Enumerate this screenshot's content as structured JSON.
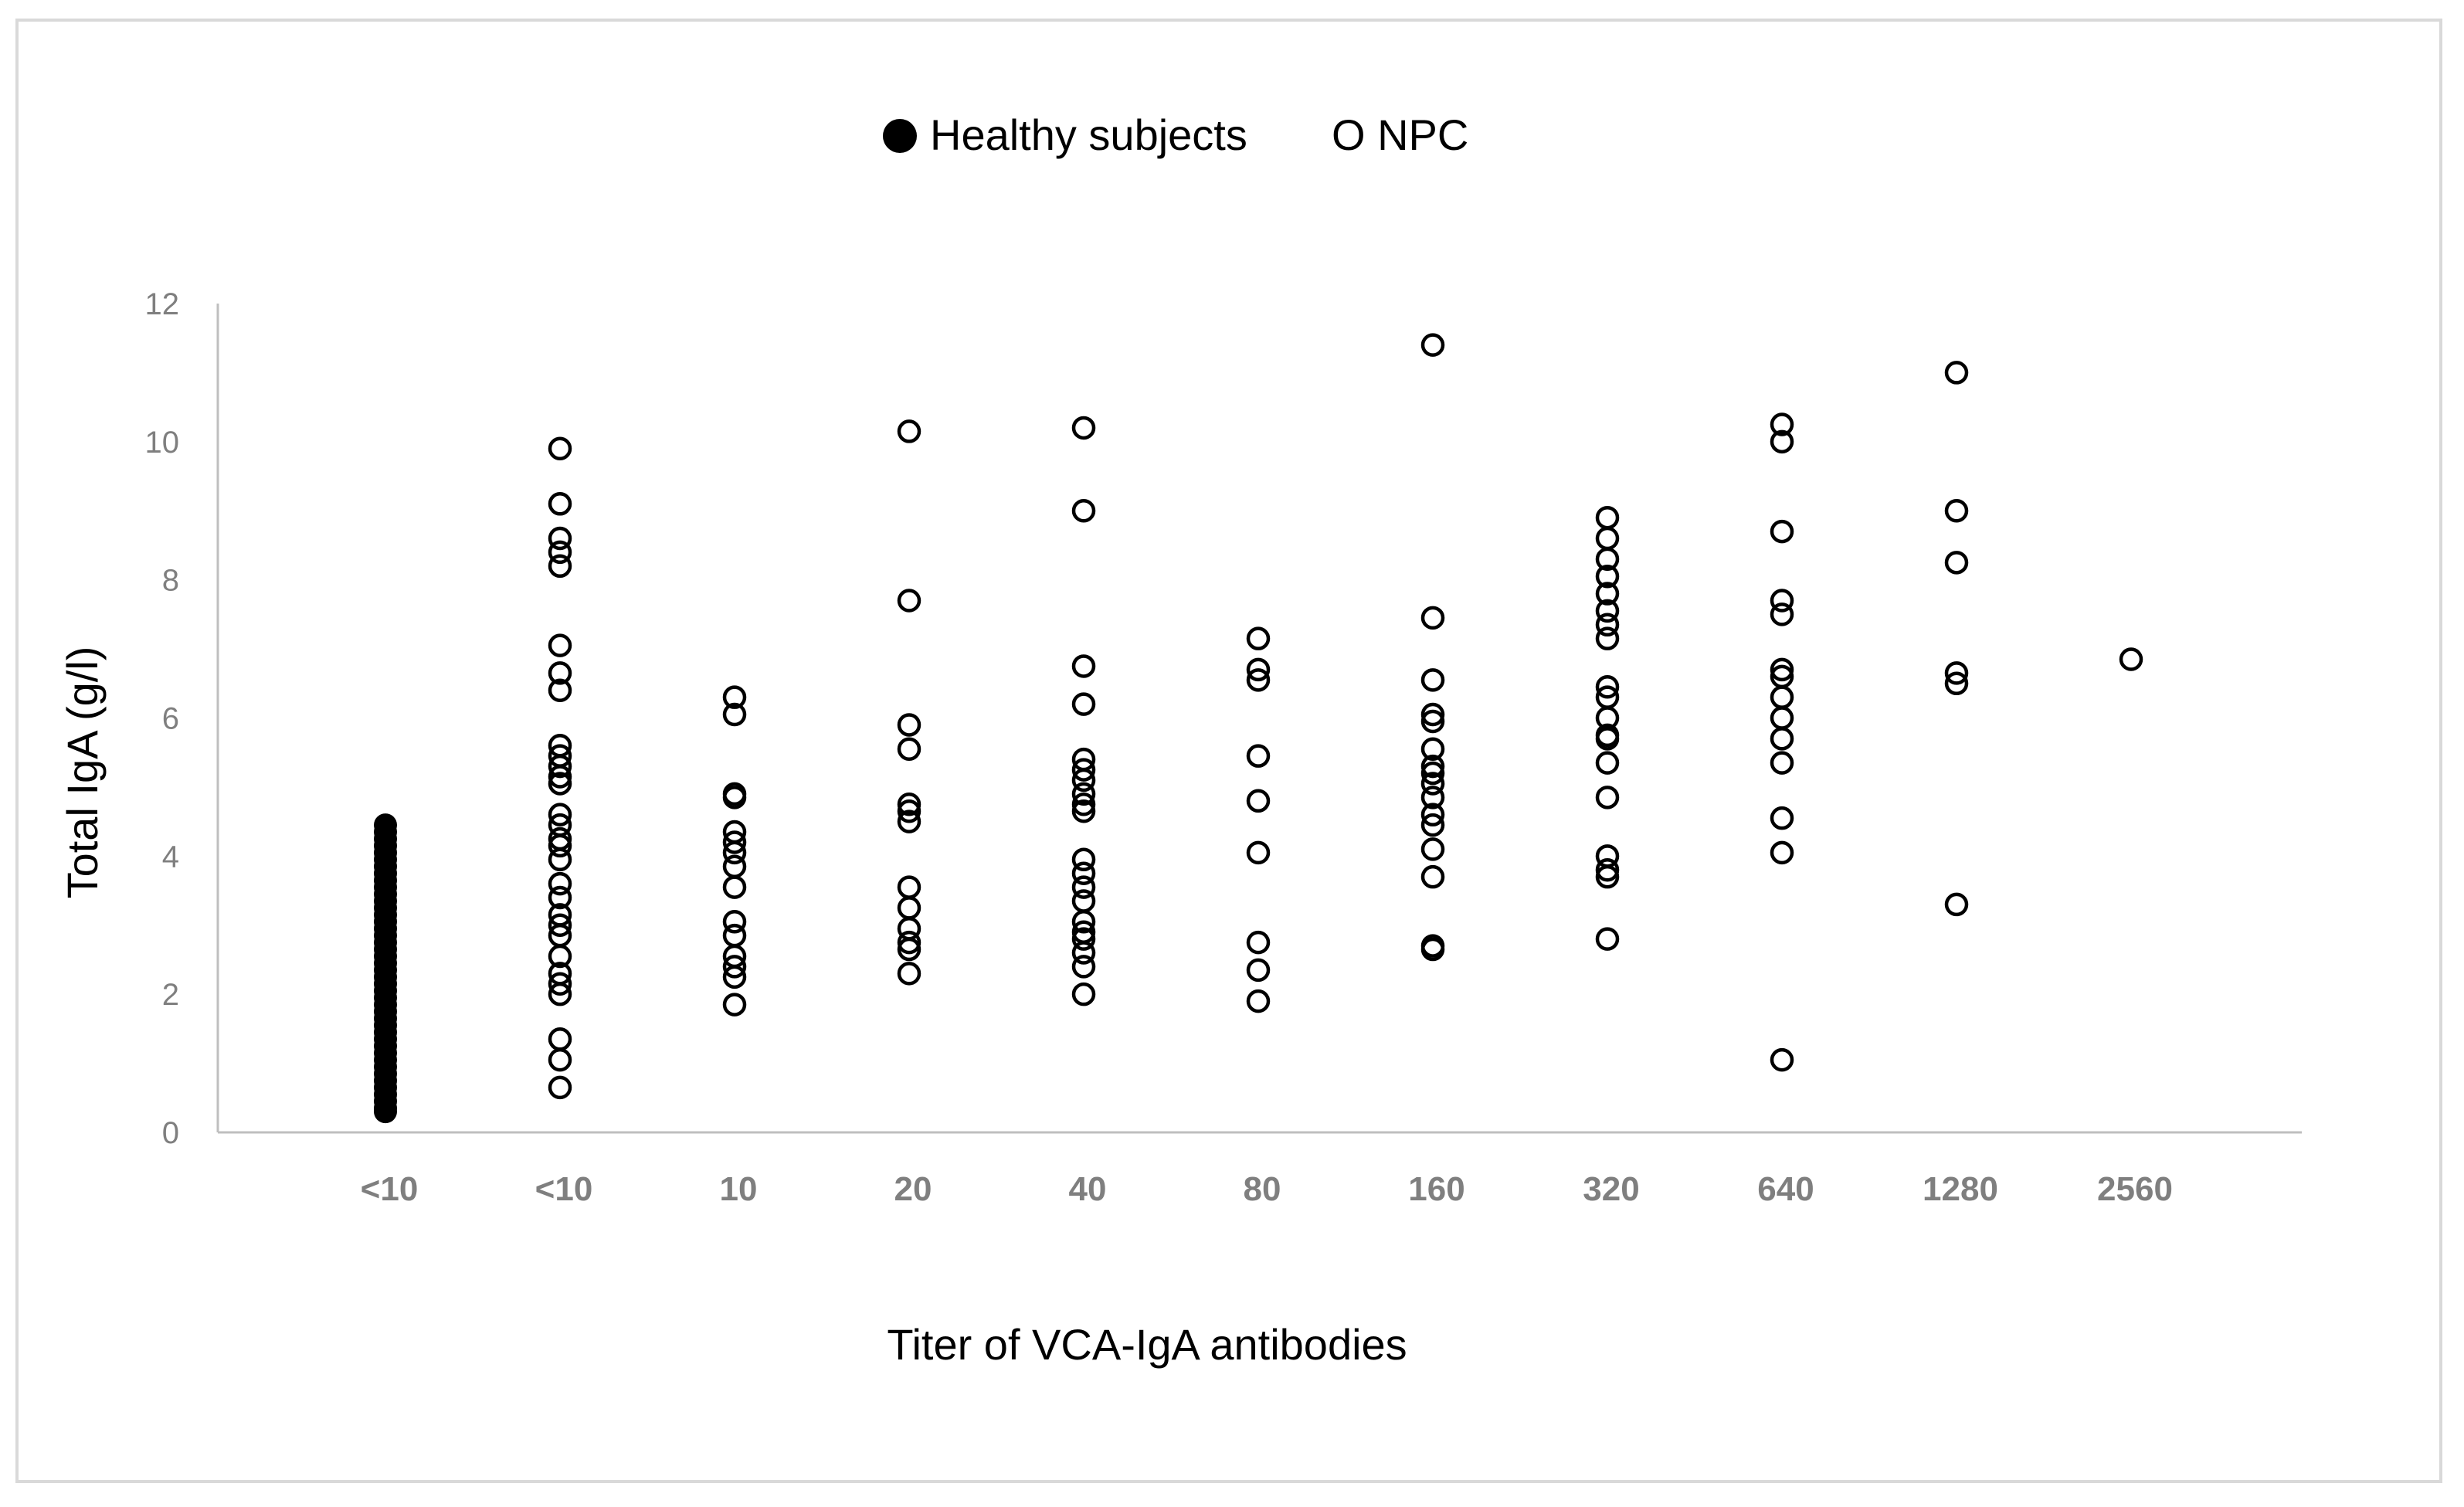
{
  "chart_data": {
    "type": "scatter",
    "title": "",
    "xlabel": "Titer of VCA-IgA antibodies",
    "ylabel": "Total IgA  (g/l)",
    "categories": [
      "<10",
      "<10",
      "10",
      "20",
      "40",
      "80",
      "160",
      "320",
      "640",
      "1280",
      "2560"
    ],
    "ylim": [
      0,
      12
    ],
    "yticks": [
      0,
      2,
      4,
      6,
      8,
      10,
      12
    ],
    "grid": false,
    "legend_position": "top-center",
    "legend": {
      "healthy_label": "Healthy subjects",
      "npc_label": "O NPC"
    },
    "series": [
      {
        "name": "Healthy subjects",
        "marker": "filled-circle",
        "category_index": 0,
        "values": [
          0.3,
          0.35,
          0.45,
          0.55,
          0.65,
          0.75,
          0.85,
          0.95,
          1.05,
          1.15,
          1.25,
          1.35,
          1.45,
          1.55,
          1.65,
          1.75,
          1.85,
          1.95,
          2.05,
          2.15,
          2.25,
          2.35,
          2.45,
          2.55,
          2.65,
          2.75,
          2.85,
          2.95,
          3.05,
          3.15,
          3.25,
          3.35,
          3.45,
          3.55,
          3.65,
          3.75,
          3.85,
          3.95,
          4.05,
          4.15,
          4.25,
          4.35,
          4.45
        ]
      },
      {
        "name": "NPC",
        "marker": "open-circle",
        "points_by_category": [
          [],
          [
            9.9,
            9.1,
            8.6,
            8.4,
            8.2,
            7.05,
            6.65,
            6.4,
            5.6,
            5.45,
            5.3,
            5.15,
            5.05,
            4.6,
            4.45,
            4.25,
            4.15,
            3.95,
            3.6,
            3.4,
            3.15,
            3.0,
            2.85,
            2.55,
            2.3,
            2.15,
            2.0,
            1.35,
            1.05,
            0.65
          ],
          [
            6.3,
            6.05,
            4.9,
            4.85,
            4.35,
            4.2,
            4.05,
            3.85,
            3.55,
            3.05,
            2.85,
            2.55,
            2.4,
            2.25,
            1.85
          ],
          [
            10.15,
            7.7,
            5.9,
            5.55,
            4.75,
            4.65,
            4.5,
            3.55,
            3.25,
            2.95,
            2.75,
            2.65,
            2.3
          ],
          [
            10.2,
            9.0,
            6.75,
            6.2,
            5.4,
            5.25,
            5.1,
            4.9,
            4.75,
            4.65,
            3.95,
            3.75,
            3.55,
            3.35,
            3.05,
            2.9,
            2.8,
            2.6,
            2.4,
            2.0
          ],
          [
            7.15,
            6.7,
            6.55,
            5.45,
            4.8,
            4.05,
            2.75,
            2.35,
            1.9
          ],
          [
            11.4,
            7.45,
            6.55,
            6.05,
            5.95,
            5.55,
            5.3,
            5.2,
            5.05,
            4.85,
            4.6,
            4.45,
            4.1,
            3.7,
            2.7,
            2.65
          ],
          [
            8.9,
            8.6,
            8.3,
            8.05,
            7.8,
            7.55,
            7.35,
            7.15,
            6.45,
            6.3,
            6.0,
            5.75,
            5.7,
            5.35,
            4.85,
            4.0,
            3.8,
            3.7,
            2.8
          ],
          [
            10.25,
            10.0,
            8.7,
            7.7,
            7.5,
            6.7,
            6.6,
            6.3,
            6.0,
            5.7,
            5.35,
            4.55,
            4.05,
            1.05
          ],
          [
            11.0,
            9.0,
            8.25,
            6.65,
            6.5,
            3.3
          ],
          [
            6.85
          ]
        ]
      }
    ]
  }
}
